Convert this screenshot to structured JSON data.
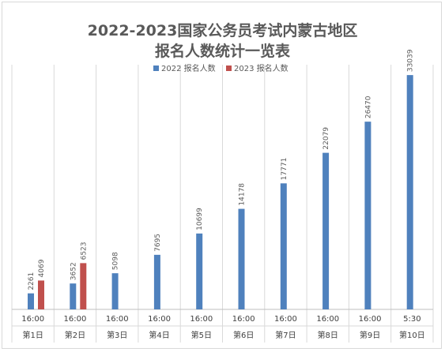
{
  "chart_data": {
    "type": "bar",
    "title_line1": "2022-2023国家公务员考试内蒙古地区",
    "title_line2": "报名人数统计一览表",
    "categories_time": [
      "16:00",
      "16:00",
      "16:00",
      "16:00",
      "16:00",
      "16:00",
      "16:00",
      "16:00",
      "16:00",
      "5:30"
    ],
    "categories_day": [
      "第1日",
      "第2日",
      "第3日",
      "第4日",
      "第5日",
      "第6日",
      "第7日",
      "第8日",
      "第9日",
      "第10日"
    ],
    "series": [
      {
        "name": "2022 报名人数",
        "color": "#4f81bd",
        "values": [
          2261,
          3652,
          5098,
          7695,
          10699,
          14178,
          17771,
          22079,
          26470,
          33039
        ]
      },
      {
        "name": "2023 报名人数",
        "color": "#c0504d",
        "values": [
          4069,
          6523,
          null,
          null,
          null,
          null,
          null,
          null,
          null,
          null
        ]
      }
    ],
    "ylim": [
      0,
      34500
    ],
    "legend_position": "top-center"
  }
}
